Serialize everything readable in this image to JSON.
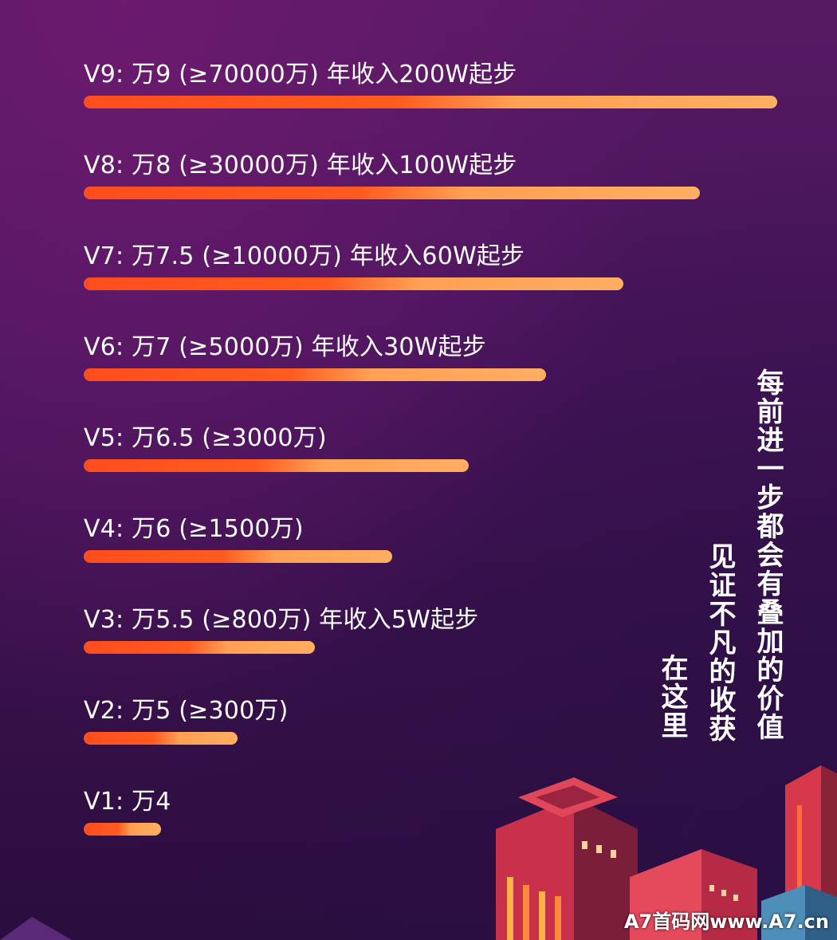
{
  "chart_data": {
    "type": "bar",
    "orientation": "horizontal",
    "categories": [
      "V9",
      "V8",
      "V7",
      "V6",
      "V5",
      "V4",
      "V3",
      "V2",
      "V1"
    ],
    "labels": [
      "V9: 万9 (≥70000万)  年收入200W起步",
      "V8: 万8 (≥30000万)  年收入100W起步",
      "V7: 万7.5 (≥10000万)  年收入60W起步",
      "V6: 万7 (≥5000万)  年收入30W起步",
      "V5: 万6.5 (≥3000万)",
      "V4: 万6 (≥1500万)",
      "V3: 万5.5 (≥800万)  年收入5W起步",
      "V2: 万5 (≥300万)",
      "V1: 万4"
    ],
    "values": [
      9,
      8,
      7,
      6,
      5,
      4,
      3,
      2,
      1
    ],
    "bar_colors": [
      "#ff4d1c",
      "#ffae62"
    ],
    "grid": false,
    "legend": "none"
  },
  "slogans": {
    "line1": "每前进一步都会有叠加的价值",
    "line2": "见证不凡的收获",
    "line3": "在这里"
  },
  "watermark": "A7首码网www.A7.cn",
  "colors": {
    "background": "#45145a",
    "text": "#ffffff"
  }
}
